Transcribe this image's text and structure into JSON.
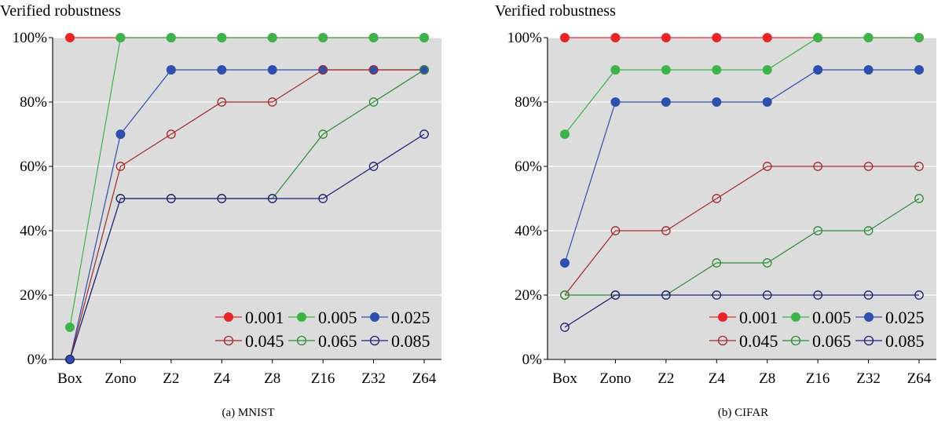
{
  "chart_data": [
    {
      "type": "line",
      "title": "",
      "ylabel": "Verified robustness",
      "xlabel": "",
      "caption": "(a) MNIST",
      "categories": [
        "Box",
        "Zono",
        "Z2",
        "Z4",
        "Z8",
        "Z16",
        "Z32",
        "Z64"
      ],
      "ylim": [
        0,
        100
      ],
      "yticks": [
        "0%",
        "20%",
        "40%",
        "60%",
        "80%",
        "100%"
      ],
      "grid": true,
      "legend_position": "bottom-right",
      "series": [
        {
          "name": "0.001",
          "color": "#e8262a",
          "marker": "filled",
          "values": [
            100,
            100,
            100,
            100,
            100,
            100,
            100,
            100
          ]
        },
        {
          "name": "0.005",
          "color": "#3cb44b",
          "marker": "filled",
          "values": [
            10,
            100,
            100,
            100,
            100,
            100,
            100,
            100
          ]
        },
        {
          "name": "0.025",
          "color": "#2f4fae",
          "marker": "filled",
          "values": [
            0,
            70,
            90,
            90,
            90,
            90,
            90,
            90
          ]
        },
        {
          "name": "0.045",
          "color": "#a52a2a",
          "marker": "open",
          "values": [
            0,
            60,
            70,
            80,
            80,
            90,
            90,
            90
          ]
        },
        {
          "name": "0.065",
          "color": "#2e8b3a",
          "marker": "open",
          "values": [
            0,
            50,
            50,
            50,
            50,
            70,
            80,
            90
          ]
        },
        {
          "name": "0.085",
          "color": "#1f1f7a",
          "marker": "open",
          "values": [
            0,
            50,
            50,
            50,
            50,
            50,
            60,
            70
          ]
        }
      ]
    },
    {
      "type": "line",
      "title": "",
      "ylabel": "Verified robustness",
      "xlabel": "",
      "caption": "(b) CIFAR",
      "categories": [
        "Box",
        "Zono",
        "Z2",
        "Z4",
        "Z8",
        "Z16",
        "Z32",
        "Z64"
      ],
      "ylim": [
        0,
        100
      ],
      "yticks": [
        "0%",
        "20%",
        "40%",
        "60%",
        "80%",
        "100%"
      ],
      "grid": true,
      "legend_position": "bottom-right",
      "series": [
        {
          "name": "0.001",
          "color": "#e8262a",
          "marker": "filled",
          "values": [
            100,
            100,
            100,
            100,
            100,
            100,
            100,
            100
          ]
        },
        {
          "name": "0.005",
          "color": "#3cb44b",
          "marker": "filled",
          "values": [
            70,
            90,
            90,
            90,
            90,
            100,
            100,
            100
          ]
        },
        {
          "name": "0.025",
          "color": "#2f4fae",
          "marker": "filled",
          "values": [
            30,
            80,
            80,
            80,
            80,
            90,
            90,
            90
          ]
        },
        {
          "name": "0.045",
          "color": "#a52a2a",
          "marker": "open",
          "values": [
            20,
            40,
            40,
            50,
            60,
            60,
            60,
            60
          ]
        },
        {
          "name": "0.065",
          "color": "#2e8b3a",
          "marker": "open",
          "values": [
            20,
            20,
            20,
            30,
            30,
            40,
            40,
            50
          ]
        },
        {
          "name": "0.085",
          "color": "#1f1f7a",
          "marker": "open",
          "values": [
            10,
            20,
            20,
            20,
            20,
            20,
            20,
            20
          ]
        }
      ]
    }
  ]
}
